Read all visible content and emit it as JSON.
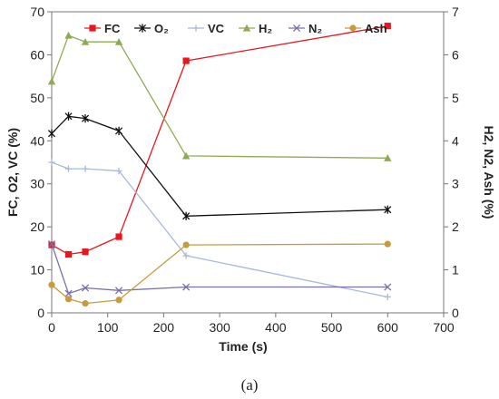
{
  "chart_data": {
    "type": "line",
    "xlabel": "Time (s)",
    "ylabel_left": "FC, O2, VC (%)",
    "ylabel_right": "H2, N2, Ash (%)",
    "xlim": [
      0,
      700
    ],
    "xticks": [
      "0",
      "100",
      "200",
      "300",
      "400",
      "500",
      "600",
      "700"
    ],
    "ylim_left": [
      0,
      70
    ],
    "yticks_left": [
      "0",
      "10",
      "20",
      "30",
      "40",
      "50",
      "60",
      "70"
    ],
    "ylim_right": [
      0,
      7
    ],
    "yticks_right": [
      "0",
      "1",
      "2",
      "3",
      "4",
      "5",
      "6",
      "7"
    ],
    "grid": false,
    "legend_position": "top",
    "series": [
      {
        "name": "FC",
        "axis": "left",
        "color": "#e8171f",
        "marker": "square",
        "x": [
          0,
          30,
          60,
          120,
          240,
          600
        ],
        "values": [
          15.8,
          13.6,
          14.2,
          17.7,
          58.6,
          66.7
        ]
      },
      {
        "name": "O₂",
        "axis": "left",
        "color": "#111111",
        "marker": "x-star",
        "x": [
          0,
          30,
          60,
          120,
          240,
          600
        ],
        "values": [
          41.7,
          45.7,
          45.2,
          42.3,
          22.5,
          24.0
        ]
      },
      {
        "name": "VC",
        "axis": "left",
        "color": "#a8b8d8",
        "marker": "plus",
        "x": [
          0,
          30,
          60,
          120,
          240,
          600
        ],
        "values": [
          35.0,
          33.5,
          33.5,
          33.0,
          13.3,
          3.7
        ]
      },
      {
        "name": "H₂",
        "axis": "right",
        "color": "#8faa55",
        "marker": "triangle",
        "x": [
          0,
          30,
          60,
          120,
          240,
          600
        ],
        "values": [
          5.38,
          6.45,
          6.3,
          6.3,
          3.65,
          3.6
        ]
      },
      {
        "name": "N₂",
        "axis": "right",
        "color": "#7a70a8",
        "marker": "x",
        "x": [
          0,
          30,
          60,
          120,
          240,
          600
        ],
        "values": [
          1.6,
          0.45,
          0.58,
          0.52,
          0.6,
          0.6
        ]
      },
      {
        "name": "Ash",
        "axis": "right",
        "color": "#c89a3c",
        "marker": "circle",
        "x": [
          0,
          30,
          60,
          120,
          240,
          600
        ],
        "values": [
          0.65,
          0.32,
          0.22,
          0.3,
          1.58,
          1.6
        ]
      }
    ]
  },
  "caption": "(a)"
}
